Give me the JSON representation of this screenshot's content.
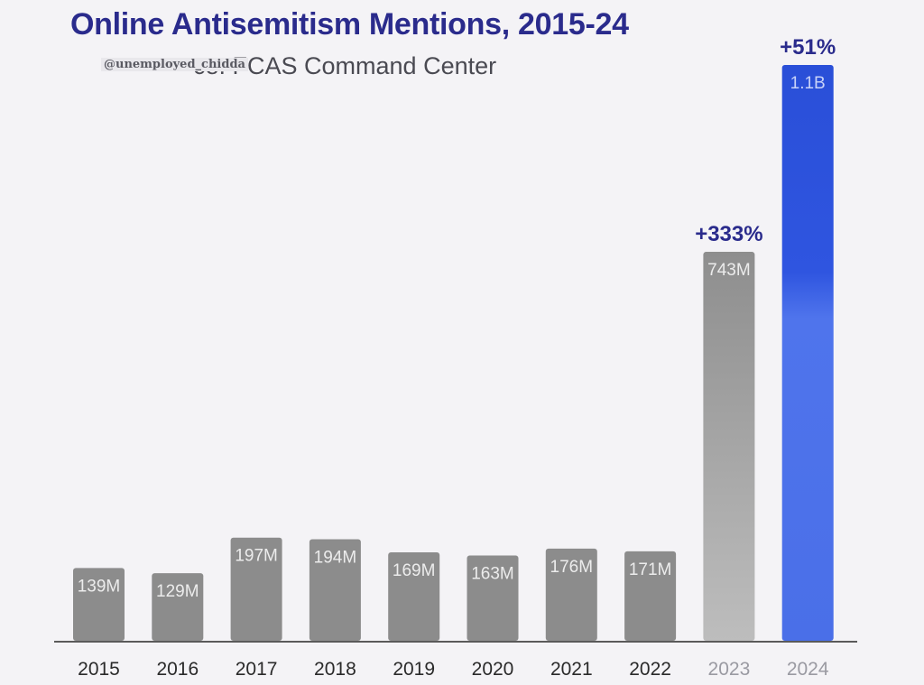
{
  "watermark": "@unemployed_chidda",
  "chart_data": {
    "type": "bar",
    "title": "Online Antisemitism Mentions, 2015-24",
    "subtitle": "Source: FCAS Command Center",
    "subtitle_visible": "ce: FCAS Command Center",
    "xlabel": "",
    "ylabel": "",
    "categories": [
      "2015",
      "2016",
      "2017",
      "2018",
      "2019",
      "2020",
      "2021",
      "2022",
      "2023",
      "2024"
    ],
    "values": [
      139,
      129,
      197,
      194,
      169,
      163,
      176,
      171,
      743,
      1100
    ],
    "unit": "millions",
    "value_labels": [
      "139M",
      "129M",
      "197M",
      "194M",
      "169M",
      "163M",
      "176M",
      "171M",
      "743M",
      "1.1B"
    ],
    "annotations": [
      {
        "category": "2023",
        "text": "+333%"
      },
      {
        "category": "2024",
        "text": "+51%"
      }
    ],
    "ylim": [
      0,
      1100
    ],
    "grid": false,
    "colors": {
      "base": "#8c8c8c",
      "highlight_2023": "#b8b8b8",
      "highlight_2024": "#2f55e0",
      "annotation": "#2a2b8c",
      "tick_dark": "#2a2a2a",
      "tick_light": "#9a9aa2"
    }
  }
}
